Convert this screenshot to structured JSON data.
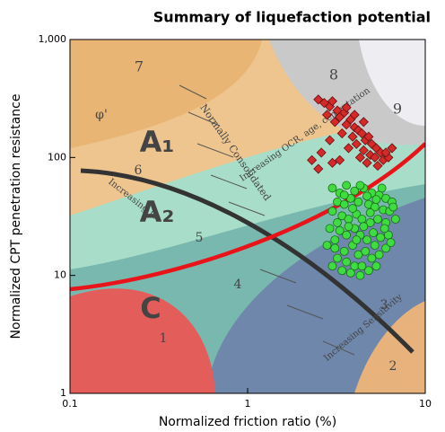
{
  "chart_data": {
    "type": "scatter",
    "title": "Summary of liquefaction potential",
    "x_label": "Normalized friction ratio (%)",
    "y_label": "Normalized CPT penetration resistance",
    "xscale": "log",
    "yscale": "log",
    "xlim": [
      0.1,
      10
    ],
    "ylim": [
      1,
      1000
    ],
    "xticks": [
      0.1,
      1,
      10
    ],
    "yticks": [
      1,
      10,
      100,
      {
        "value": 1000,
        "label": "1,000"
      }
    ],
    "annotations": [
      "7",
      "8",
      "9",
      "6",
      "5",
      "4",
      "3",
      "2",
      "1",
      "A₁",
      "A₂",
      "C",
      "φ'",
      "Increasing OCR, age, cementation",
      "Normally Consolidated",
      "Increasing Ic",
      "Increasing Sensitivity"
    ],
    "series": [
      {
        "color": "#d42a2a",
        "marker": "diamond",
        "x": [
          2.5,
          2.7,
          2.9,
          3.0,
          3.2,
          3.3,
          3.5,
          3.1,
          3.6,
          3.8,
          4.0,
          4.2,
          3.9,
          4.4,
          4.6,
          4.8,
          5.0,
          5.3,
          5.6,
          4.1,
          4.5,
          4.9,
          5.2,
          5.8,
          6.2,
          3.4,
          3.7,
          2.9,
          2.6,
          2.3,
          2.5,
          3.0,
          3.3,
          4.3,
          4.7,
          5.4,
          6.0,
          6.5,
          3.6,
          2.8,
          4.0,
          4.5
        ],
        "y": [
          310,
          290,
          270,
          300,
          250,
          220,
          240,
          200,
          190,
          210,
          180,
          170,
          150,
          160,
          140,
          150,
          130,
          120,
          110,
          130,
          115,
          105,
          100,
          95,
          100,
          160,
          120,
          140,
          110,
          95,
          80,
          90,
          95,
          100,
          90,
          85,
          110,
          120,
          265,
          230,
          230,
          200
        ]
      },
      {
        "color": "#3fdc3f",
        "marker": "circle",
        "x": [
          3.0,
          3.3,
          3.6,
          4.0,
          4.5,
          5.0,
          5.5,
          6.0,
          6.5,
          3.2,
          3.5,
          3.8,
          4.2,
          4.8,
          5.2,
          5.8,
          6.3,
          3.0,
          3.4,
          3.7,
          4.1,
          4.4,
          4.9,
          5.4,
          6.0,
          6.8,
          2.9,
          3.3,
          3.6,
          4.0,
          4.3,
          4.7,
          5.1,
          5.6,
          6.2,
          2.8,
          3.1,
          3.5,
          3.9,
          4.2,
          4.6,
          5.0,
          5.5,
          6.0,
          3.2,
          3.6,
          4.0,
          4.4,
          4.8,
          5.3,
          3.0,
          3.4,
          3.8,
          4.3,
          3.1,
          4.5,
          5.9,
          6.6,
          5.3,
          4.7,
          3.9,
          3.2,
          4.1,
          5.2,
          6.4,
          3.7,
          4.9,
          5.7,
          4.3,
          3.5
        ],
        "y": [
          55,
          50,
          58,
          52,
          55,
          50,
          48,
          45,
          42,
          42,
          40,
          45,
          42,
          40,
          38,
          36,
          35,
          35,
          32,
          30,
          33,
          30,
          28,
          30,
          28,
          30,
          25,
          24,
          22,
          25,
          22,
          20,
          23,
          21,
          22,
          18,
          17,
          16,
          18,
          15,
          16,
          14,
          15,
          17,
          14,
          13,
          12,
          12,
          11,
          12,
          12,
          11,
          10.5,
          10,
          20,
          26,
          25,
          38,
          44,
          47,
          37,
          28,
          20,
          18,
          19,
          26,
          34,
          55,
          58,
          48
        ]
      }
    ]
  }
}
